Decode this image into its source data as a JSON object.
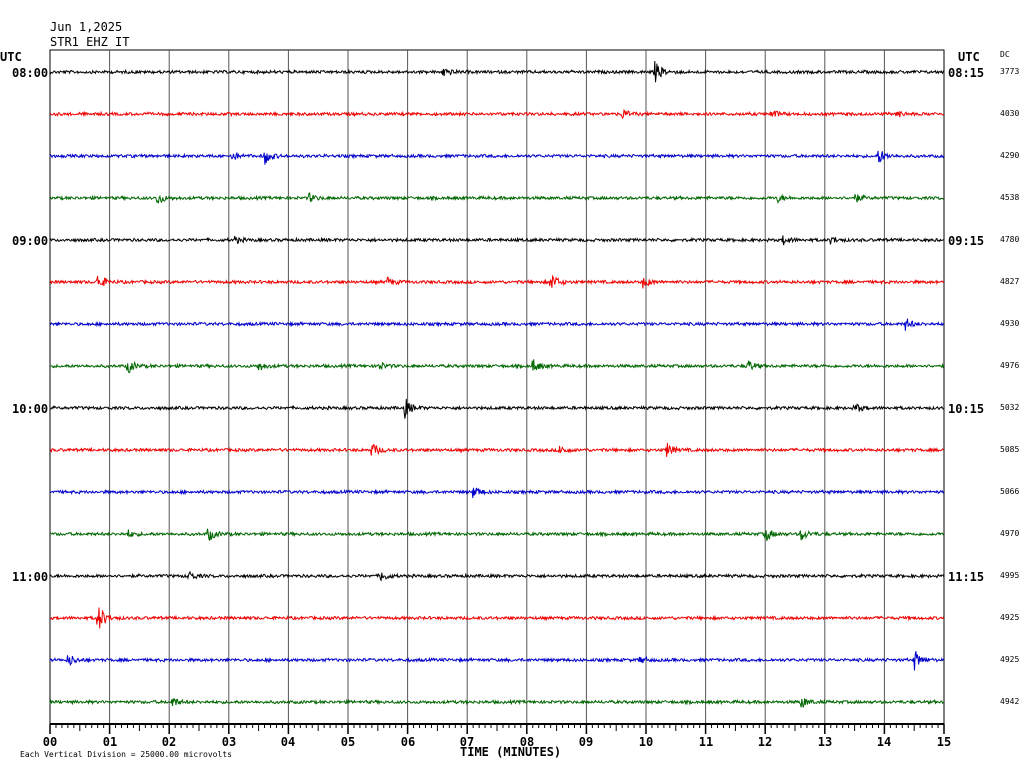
{
  "header": {
    "date": "Jun 1,2025",
    "station": "STR1 EHZ IT"
  },
  "left_axis": {
    "title": "UTC",
    "hour_labels": [
      "08:00",
      "09:00",
      "10:00",
      "11:00"
    ]
  },
  "right_axis": {
    "title": "UTC",
    "hour_labels": [
      "08:15",
      "09:15",
      "10:15",
      "11:15"
    ],
    "dc_title": "DC"
  },
  "footer": {
    "xlabel": "TIME (MINUTES)",
    "scale_note": "Each Vertical Division = 25000.00 microvolts"
  },
  "colors": {
    "cycle": [
      "#000000",
      "#ee0000",
      "#0000cc",
      "#006600"
    ]
  },
  "chart_data": {
    "type": "line",
    "title": "STR1 EHZ IT",
    "subtitle": "Jun 1,2025",
    "xlabel": "TIME (MINUTES)",
    "xlim": [
      0,
      15
    ],
    "x_ticks": [
      "00",
      "01",
      "02",
      "03",
      "04",
      "05",
      "06",
      "07",
      "08",
      "09",
      "10",
      "11",
      "12",
      "13",
      "14",
      "15"
    ],
    "grid": true,
    "traces": [
      {
        "dc": "3773",
        "events": [
          [
            6.6,
            1.4
          ],
          [
            10.15,
            2.8
          ]
        ]
      },
      {
        "dc": "4030",
        "events": [
          [
            9.6,
            1.3
          ],
          [
            12.1,
            1.1
          ],
          [
            14.2,
            0.9
          ]
        ]
      },
      {
        "dc": "4290",
        "events": [
          [
            3.05,
            1.1
          ],
          [
            3.6,
            2.2
          ],
          [
            13.9,
            2.0
          ]
        ]
      },
      {
        "dc": "4538",
        "events": [
          [
            1.8,
            1.7
          ],
          [
            4.35,
            1.1
          ],
          [
            12.2,
            1.0
          ],
          [
            13.5,
            1.2
          ]
        ]
      },
      {
        "dc": "4780",
        "events": [
          [
            3.1,
            0.8
          ],
          [
            12.3,
            1.2
          ],
          [
            13.1,
            1.0
          ]
        ]
      },
      {
        "dc": "4827",
        "events": [
          [
            0.8,
            2.2
          ],
          [
            5.65,
            1.2
          ],
          [
            8.4,
            2.6
          ],
          [
            9.95,
            1.5
          ]
        ]
      },
      {
        "dc": "4930",
        "events": [
          [
            14.35,
            1.6
          ]
        ]
      },
      {
        "dc": "4976",
        "events": [
          [
            1.3,
            2.0
          ],
          [
            3.5,
            1.2
          ],
          [
            5.5,
            1.2
          ],
          [
            8.1,
            1.8
          ],
          [
            11.7,
            1.6
          ]
        ]
      },
      {
        "dc": "5032",
        "events": [
          [
            5.95,
            2.6
          ],
          [
            13.5,
            1.4
          ]
        ]
      },
      {
        "dc": "5085",
        "events": [
          [
            5.4,
            2.0
          ],
          [
            8.55,
            1.2
          ],
          [
            10.35,
            1.8
          ]
        ]
      },
      {
        "dc": "5066",
        "events": [
          [
            7.1,
            1.8
          ]
        ]
      },
      {
        "dc": "4970",
        "events": [
          [
            1.3,
            1.0
          ],
          [
            2.65,
            2.0
          ],
          [
            12.0,
            2.0
          ],
          [
            12.6,
            1.7
          ]
        ]
      },
      {
        "dc": "4995",
        "events": [
          [
            2.3,
            1.6
          ],
          [
            5.55,
            1.4
          ]
        ]
      },
      {
        "dc": "4925",
        "events": [
          [
            0.8,
            4.2
          ]
        ]
      },
      {
        "dc": "4925",
        "events": [
          [
            0.3,
            1.8
          ],
          [
            9.9,
            1.0
          ],
          [
            14.5,
            2.6
          ]
        ]
      },
      {
        "dc": "4942",
        "events": [
          [
            2.05,
            1.3
          ],
          [
            12.6,
            1.6
          ]
        ]
      }
    ]
  }
}
